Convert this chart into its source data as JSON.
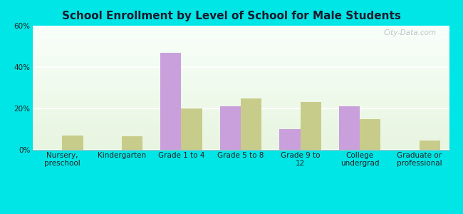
{
  "title": "School Enrollment by Level of School for Male Students",
  "categories": [
    "Nursery,\npreschool",
    "Kindergarten",
    "Grade 1 to 4",
    "Grade 5 to 8",
    "Grade 9 to\n12",
    "College\nundergrad",
    "Graduate or\nprofessional"
  ],
  "plantersville": [
    0,
    0,
    47,
    21,
    10,
    21,
    0
  ],
  "mississippi": [
    7,
    6.5,
    20,
    25,
    23,
    15,
    4.5
  ],
  "plantersville_color": "#c9a0dc",
  "mississippi_color": "#c8cc8a",
  "background_color": "#00e5e5",
  "title_fontsize": 11,
  "tick_fontsize": 7.5,
  "legend_fontsize": 9,
  "ylim": [
    0,
    60
  ],
  "yticks": [
    0,
    20,
    40,
    60
  ],
  "ytick_labels": [
    "0%",
    "20%",
    "40%",
    "60%"
  ],
  "watermark": "City-Data.com"
}
